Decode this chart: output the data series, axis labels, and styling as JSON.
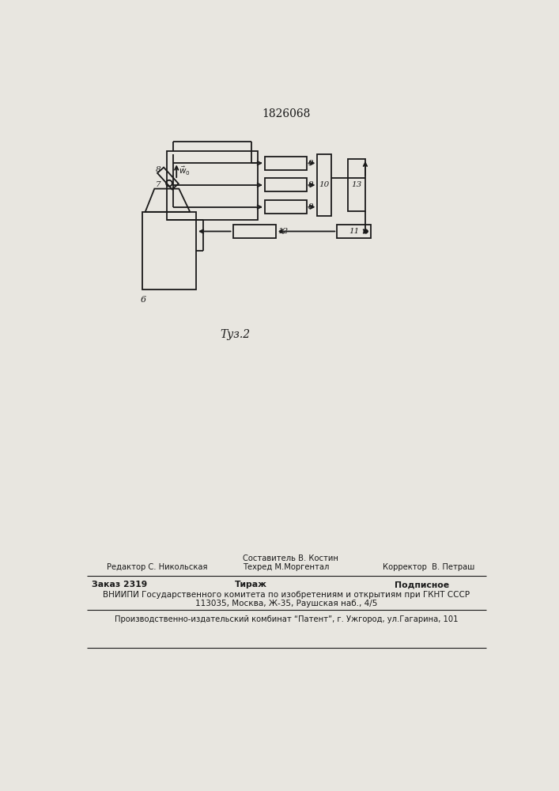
{
  "title": "1826068",
  "fig_label": "Τуз.2",
  "background_color": "#e8e6e0",
  "line_color": "#1a1a1a",
  "editor_line1": "Редактор С. Никольская",
  "composer_line1": "Составитель В. Костин",
  "composer_line2": "Техред М.Моргентал",
  "corrector": "Корректор  В. Петраш",
  "order": "Заказ 2319",
  "tirage": "Тираж",
  "subscription": "Подписное",
  "vnipi_line1": "ВНИИПИ Государственного комитета по изобретениям и открытиям при ГКНТ СССР",
  "vnipi_line2": "113035, Москва, Ж-35, Раушская наб., 4/5",
  "factory": "Производственно-издательский комбинат “Патент”, г. Ужгород, ул.Гагарина, 101"
}
